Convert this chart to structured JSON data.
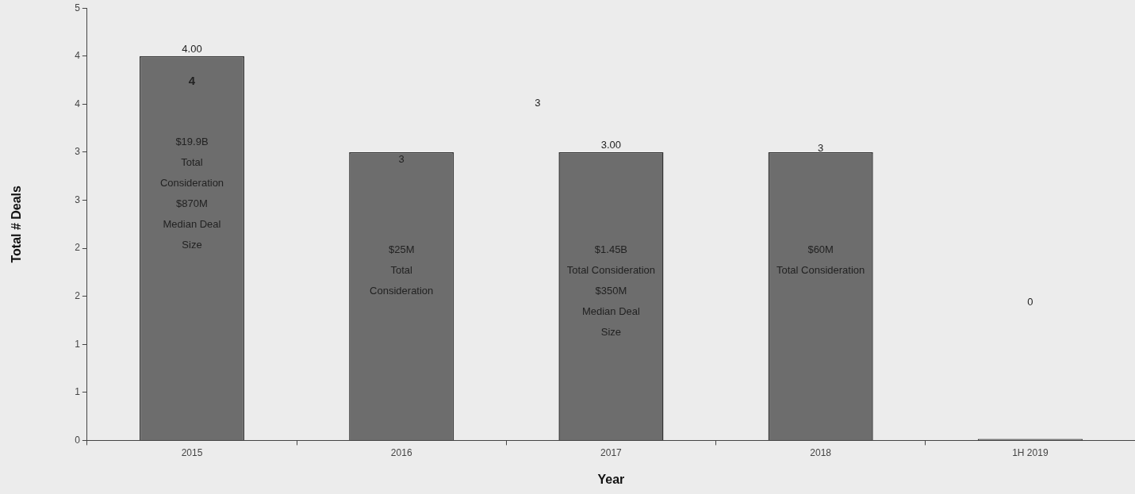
{
  "chart_data": {
    "type": "bar",
    "xlabel": "Year",
    "ylabel": "Total # Deals",
    "categories": [
      "2015",
      "2016",
      "2017",
      "2018",
      "1H 2019"
    ],
    "values": [
      4,
      3,
      3,
      3,
      0
    ],
    "color": "#6d6d6d",
    "value_labels": [
      "4.00",
      null,
      "3.00",
      null,
      null
    ],
    "ylim": [
      0,
      4.5
    ],
    "yticks": [
      0,
      {
        "value": 0.5,
        "label": "1"
      },
      1,
      {
        "value": 1.5,
        "label": "2"
      },
      2,
      {
        "value": 2.5,
        "label": "3"
      },
      3,
      {
        "value": 3.5,
        "label": "4"
      },
      4,
      {
        "value": 4.5,
        "label": "5"
      }
    ],
    "grid": false,
    "legend": false,
    "annotations": [
      "4",
      "$19.9B\nTotal\nConsideration\n$870M\nMedian Deal\nSize",
      "3",
      "$25M\nTotal\nConsideration",
      "$1.45B\nTotal Consideration\n$350M\nMedian Deal\nSize",
      "3",
      "$60M\nTotal Consideration",
      "3",
      "0"
    ]
  }
}
